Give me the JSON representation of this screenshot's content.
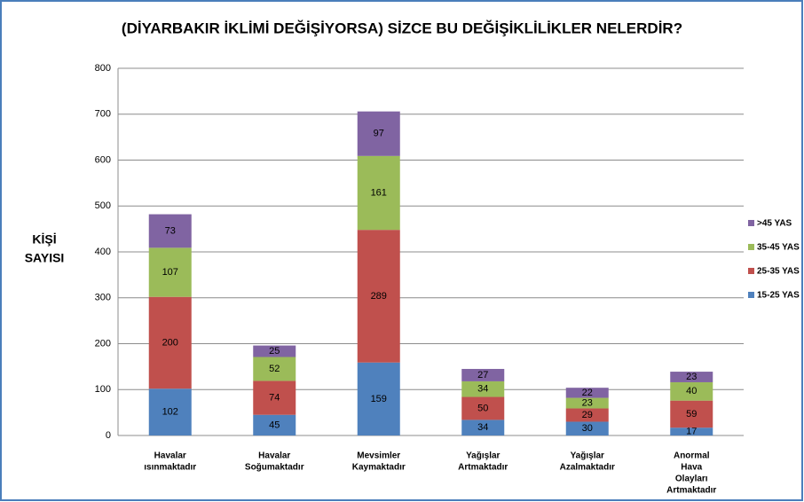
{
  "chart_data": {
    "type": "stacked_bar",
    "title": "(DİYARBAKIR İKLİMİ DEĞİŞİYORSA) SİZCE BU DEĞİŞİKLİLİKLER NELERDİR?",
    "ylabel": [
      "KİŞİ",
      "SAYISI"
    ],
    "categories": [
      [
        "Havalar",
        "ısınmaktadır"
      ],
      [
        "Havalar",
        "Soğumaktadır"
      ],
      [
        "Mevsimler",
        "Kaymaktadır"
      ],
      [
        "Yağışlar",
        "Artmaktadır"
      ],
      [
        "Yağışlar",
        "Azalmaktadır"
      ],
      [
        "Anormal",
        "Hava",
        "Olayları",
        "Artmaktadır"
      ]
    ],
    "series": [
      {
        "name": "15-25 YAS",
        "color": "#4f81bd",
        "values": [
          102,
          45,
          159,
          34,
          30,
          17
        ]
      },
      {
        "name": "25-35 YAS",
        "color": "#c0504d",
        "values": [
          200,
          74,
          289,
          50,
          29,
          59
        ]
      },
      {
        "name": "35-45 YAS",
        "color": "#9bbb59",
        "values": [
          107,
          52,
          161,
          34,
          23,
          40
        ]
      },
      {
        "name": ">45 YAS",
        "color": "#8064a2",
        "values": [
          73,
          25,
          97,
          27,
          22,
          23
        ]
      }
    ],
    "ylim": [
      0,
      800
    ],
    "yticks": [
      0,
      100,
      200,
      300,
      400,
      500,
      600,
      700,
      800
    ],
    "grid": true,
    "legend": "right"
  }
}
